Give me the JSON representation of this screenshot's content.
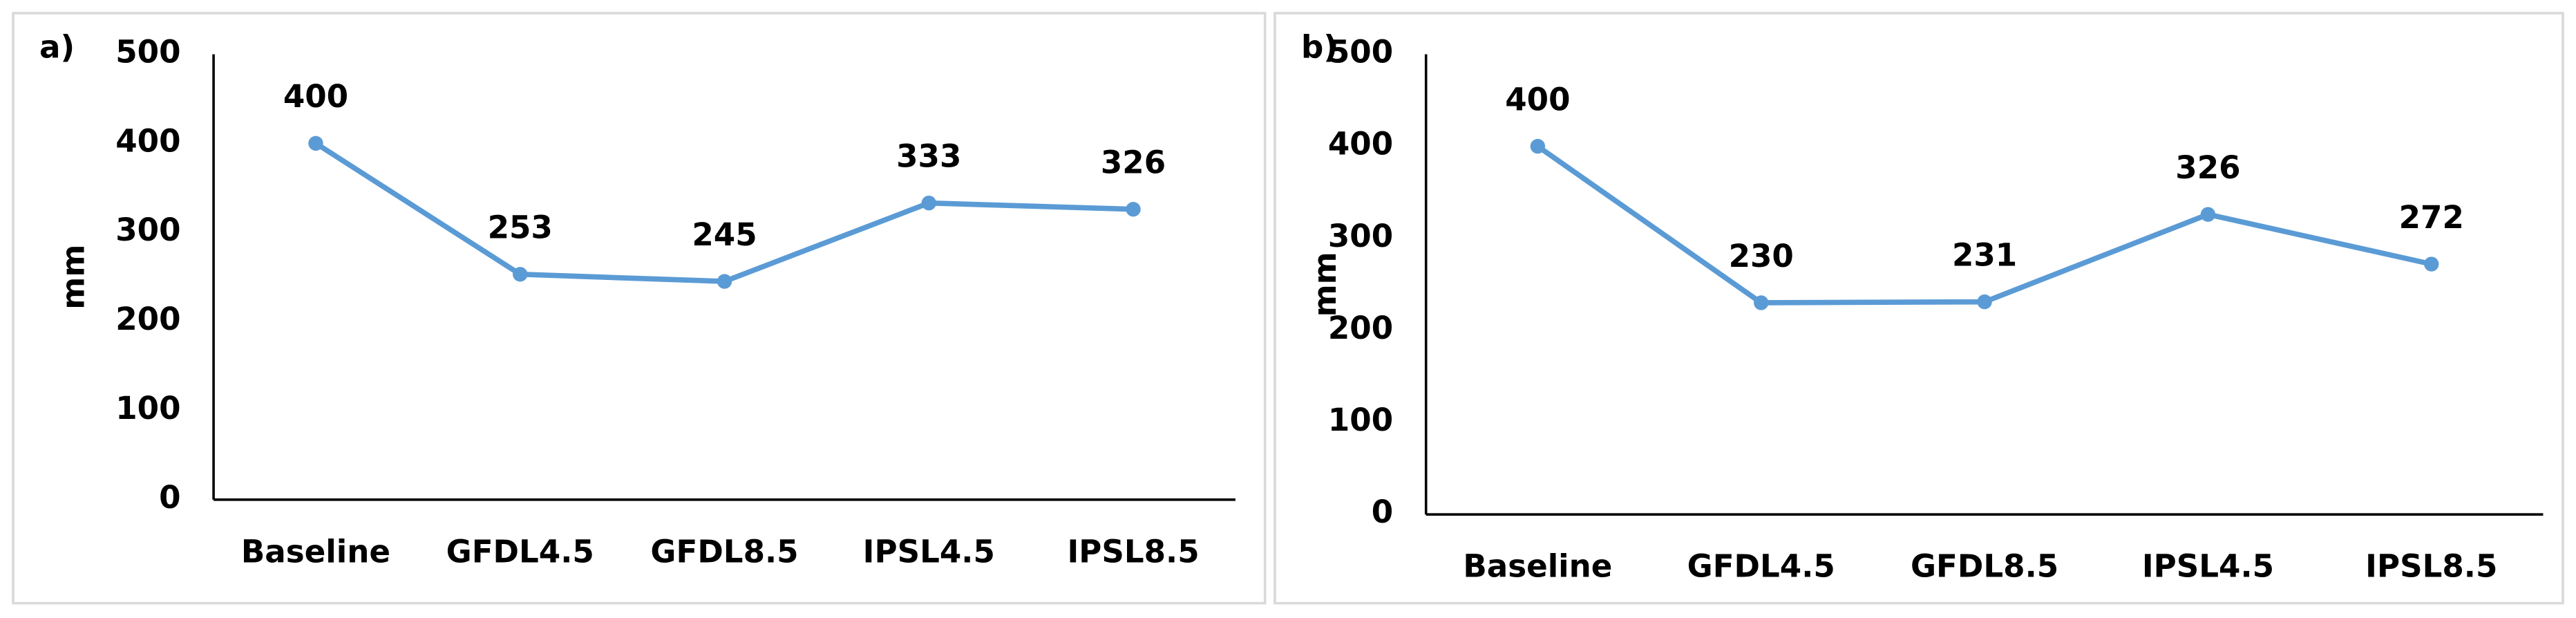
{
  "chart_data": [
    {
      "type": "line",
      "panel_label": "a)",
      "y_label": "mm",
      "categories": [
        "Baseline",
        "GFDL4.5",
        "GFDL8.5",
        "IPSL4.5",
        "IPSL8.5"
      ],
      "values": [
        400,
        253,
        245,
        333,
        326
      ],
      "color": "#5b9bd5",
      "ylim": [
        0,
        500
      ],
      "yticks": [
        0,
        100,
        200,
        300,
        400,
        500
      ],
      "grid": false
    },
    {
      "type": "line",
      "panel_label": "b)",
      "y_label": "mm",
      "categories": [
        "Baseline",
        "GFDL4.5",
        "GFDL8.5",
        "IPSL4.5",
        "IPSL8.5"
      ],
      "values": [
        400,
        230,
        231,
        326,
        272
      ],
      "color": "#5b9bd5",
      "ylim": [
        0,
        500
      ],
      "yticks": [
        0,
        100,
        200,
        300,
        400,
        500
      ],
      "grid": false
    }
  ]
}
